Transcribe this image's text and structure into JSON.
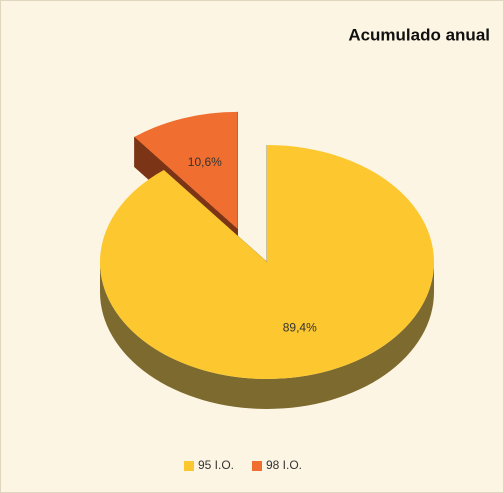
{
  "chart_data": {
    "type": "pie",
    "title": "Acumulado anual",
    "categories": [
      "95 I.O.",
      "98 I.O."
    ],
    "values": [
      89.4,
      10.6
    ],
    "value_labels": [
      "89,4%",
      "10,6%"
    ],
    "colors": [
      "#fdc82f",
      "#f06e2f"
    ],
    "side_colors": [
      "#7d6a2f",
      "#7b3415"
    ],
    "exploded": [
      false,
      true
    ],
    "legend": "bottom"
  }
}
